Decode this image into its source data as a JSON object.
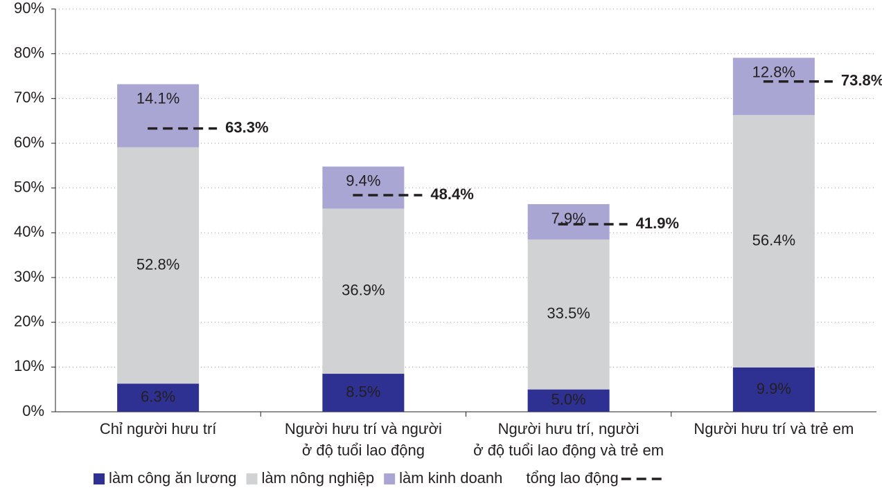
{
  "chart_data": {
    "type": "stacked-bar",
    "categories": [
      [
        "Chỉ người hưu trí"
      ],
      [
        "Người hưu trí và người",
        "ở độ tuổi lao động"
      ],
      [
        "Người hưu trí, người",
        "ở độ tuổi lao động và trẻ em"
      ],
      [
        "Người hưu trí và trẻ em"
      ]
    ],
    "series": [
      {
        "name": "làm công ăn lương",
        "color": "#2e3192",
        "values": [
          6.3,
          8.5,
          5.0,
          9.9
        ],
        "value_labels": [
          "6.3%",
          "8.5%",
          "5.0%",
          "9.9%"
        ]
      },
      {
        "name": "làm nông nghiệp",
        "color": "#d1d2d4",
        "values": [
          52.8,
          36.9,
          33.5,
          56.4
        ],
        "value_labels": [
          "52.8%",
          "36.9%",
          "33.5%",
          "56.4%"
        ]
      },
      {
        "name": "làm kinh doanh",
        "color": "#a9a6d4",
        "values": [
          14.1,
          9.4,
          7.9,
          12.8
        ],
        "value_labels": [
          "14.1%",
          "9.4%",
          "7.9%",
          "12.8%"
        ]
      },
      {
        "name": "tổng lao động",
        "type": "dash-marker",
        "color": "#231f20",
        "values": [
          63.3,
          48.4,
          41.9,
          73.8
        ],
        "value_labels": [
          "63.3%",
          "48.4%",
          "41.9%",
          "73.8%"
        ]
      }
    ],
    "ylim": [
      0,
      90
    ],
    "yticks": [
      {
        "value": 0,
        "label": "0%"
      },
      {
        "value": 10,
        "label": "10%"
      },
      {
        "value": 20,
        "label": "20%"
      },
      {
        "value": 30,
        "label": "30%"
      },
      {
        "value": 40,
        "label": "40%"
      },
      {
        "value": 50,
        "label": "50%"
      },
      {
        "value": 60,
        "label": "60%"
      },
      {
        "value": 70,
        "label": "70%"
      },
      {
        "value": 80,
        "label": "80%"
      },
      {
        "value": 90,
        "label": "90%"
      }
    ],
    "grid": true
  }
}
